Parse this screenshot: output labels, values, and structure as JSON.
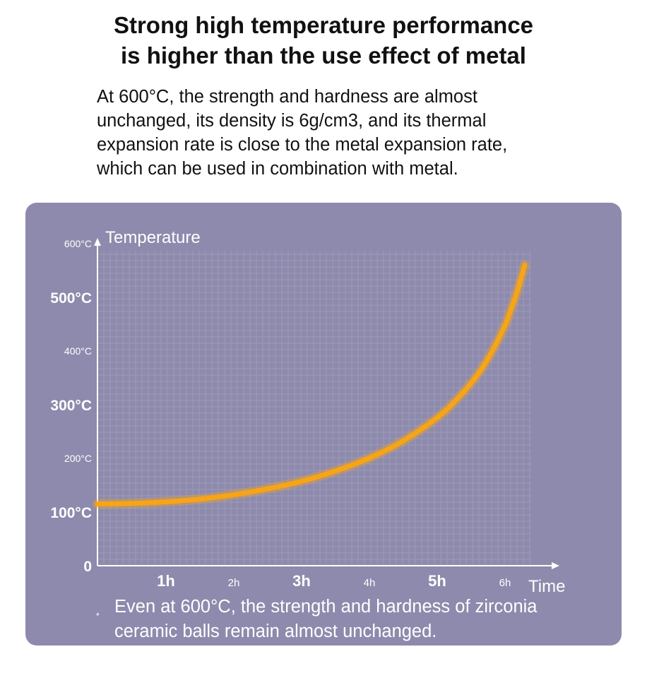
{
  "headline": {
    "line1": "Strong high temperature performance",
    "line2": "is higher than the use effect of metal"
  },
  "description": {
    "lines": [
      "At 600°C, the strength and hardness are almost",
      "unchanged, its density is 6g/cm3, and its thermal",
      "expansion rate is close to the metal expansion rate,",
      "which can be used in combination with metal."
    ]
  },
  "colors": {
    "panel": "#8e8aad",
    "grid": "#a9a6c2",
    "curve": "#f7a416",
    "axis": "#ffffff",
    "text": "#111111"
  },
  "chart_data": {
    "type": "line",
    "title": "",
    "xlabel": "Time",
    "ylabel": "Temperature",
    "xlim": [
      0,
      6.5
    ],
    "ylim": [
      0,
      600
    ],
    "grid": true,
    "x_ticks": [
      {
        "value": 1,
        "label": "1h",
        "style": "major"
      },
      {
        "value": 2,
        "label": "2h",
        "style": "minor"
      },
      {
        "value": 3,
        "label": "3h",
        "style": "major"
      },
      {
        "value": 4,
        "label": "4h",
        "style": "minor"
      },
      {
        "value": 5,
        "label": "5h",
        "style": "major"
      },
      {
        "value": 6,
        "label": "6h",
        "style": "minor"
      }
    ],
    "y_ticks": [
      {
        "value": 0,
        "label": "0",
        "style": "major"
      },
      {
        "value": 100,
        "label": "100°C",
        "style": "major"
      },
      {
        "value": 200,
        "label": "200°C",
        "style": "minor"
      },
      {
        "value": 300,
        "label": "300°C",
        "style": "major"
      },
      {
        "value": 400,
        "label": "400°C",
        "style": "minor"
      },
      {
        "value": 500,
        "label": "500°C",
        "style": "major"
      },
      {
        "value": 600,
        "label": "600°C",
        "style": "minor"
      }
    ],
    "series": [
      {
        "name": "Temperature",
        "x": [
          0,
          0.5,
          1.0,
          1.5,
          2.0,
          2.5,
          3.0,
          3.5,
          4.0,
          4.5,
          5.0,
          5.3,
          5.6,
          5.8,
          6.0,
          6.1,
          6.2,
          6.3
        ],
        "y": [
          115,
          116,
          119,
          124,
          132,
          143,
          157,
          176,
          200,
          232,
          275,
          310,
          355,
          395,
          445,
          478,
          515,
          560
        ]
      }
    ]
  },
  "footnote": {
    "star": "*",
    "lines": [
      "Even at 600°C, the strength and hardness of zirconia",
      "ceramic balls remain almost unchanged."
    ]
  }
}
